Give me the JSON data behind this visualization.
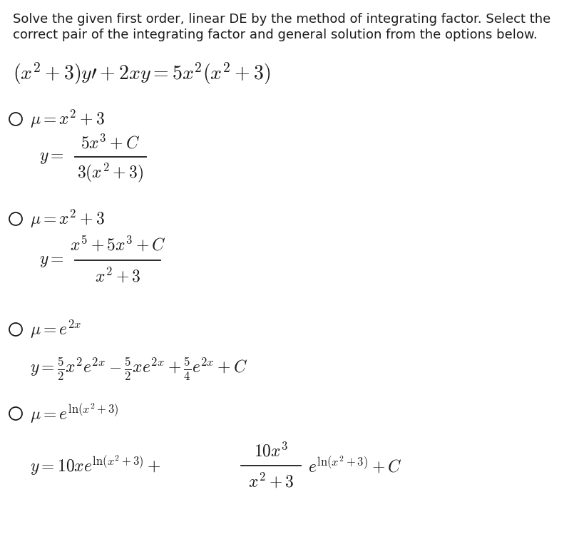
{
  "background_color": "#ffffff",
  "text_color": "#1a1a1a",
  "header_line1": "Solve the given first order, linear DE by the method of integrating factor. Select the",
  "header_line2": "correct pair of the integrating factor and general solution from the options below.",
  "header_fontsize": 13.0,
  "main_eq_fontsize": 20,
  "option_fs": 17,
  "fig_width": 8.2,
  "fig_height": 7.7,
  "dpi": 100
}
